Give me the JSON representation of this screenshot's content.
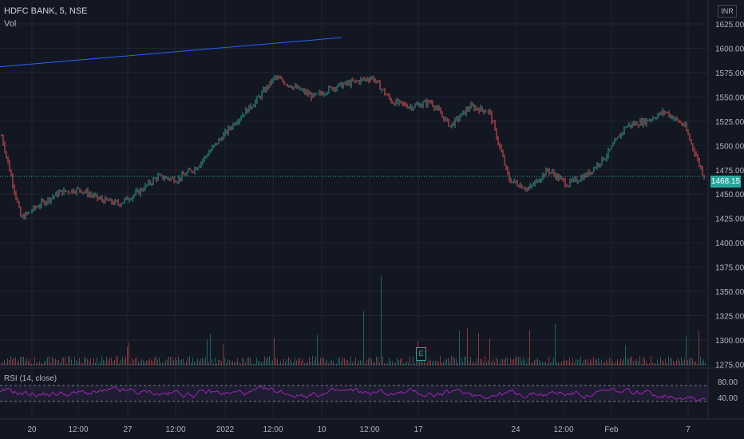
{
  "header": {
    "symbol_line": "HDFC BANK, 5, NSE",
    "volume_label": "Vol",
    "currency": "INR"
  },
  "price_axis": {
    "ticks": [
      "1625.00",
      "1600.00",
      "1575.00",
      "1550.00",
      "1525.00",
      "1500.00",
      "1475.00",
      "1450.00",
      "1425.00",
      "1400.00",
      "1375.00",
      "1350.00",
      "1325.00",
      "1300.00",
      "1275.00"
    ],
    "current_price": "1468.15"
  },
  "rsi": {
    "label": "RSI (14, close)",
    "ticks": [
      "80.00",
      "40.00"
    ]
  },
  "time_axis": {
    "labels": [
      "20",
      "12:00",
      "27",
      "12:00",
      "2022",
      "12:00",
      "10",
      "12:00",
      "17",
      "24",
      "12:00",
      "Feb",
      "7"
    ]
  },
  "earnings_marker": {
    "letter": "E"
  },
  "colors": {
    "bg": "#131722",
    "grid": "#1f2433",
    "up": "#26a69a",
    "down": "#ef5350",
    "rsi": "#9c27b0",
    "trend": "#2962ff"
  },
  "chart_data": [
    {
      "type": "line",
      "title": "HDFC BANK, 5, NSE",
      "x_unit": "date",
      "x": [
        "Dec 17",
        "Dec 20",
        "Dec 21",
        "Dec 22",
        "Dec 23",
        "Dec 24",
        "Dec 27",
        "Dec 28",
        "Dec 29",
        "Dec 30",
        "Dec 31",
        "Jan 03",
        "Jan 04",
        "Jan 05",
        "Jan 06",
        "Jan 07",
        "Jan 10",
        "Jan 11",
        "Jan 12",
        "Jan 13",
        "Jan 14",
        "Jan 17",
        "Jan 18",
        "Jan 19",
        "Jan 20",
        "Jan 21",
        "Jan 24",
        "Jan 25",
        "Jan 27",
        "Jan 28",
        "Jan 31",
        "Feb 01",
        "Feb 02",
        "Feb 03",
        "Feb 04",
        "Feb 07",
        "Feb 08"
      ],
      "y": [
        1510,
        1425,
        1440,
        1452,
        1455,
        1445,
        1440,
        1452,
        1468,
        1465,
        1478,
        1502,
        1525,
        1545,
        1570,
        1560,
        1550,
        1560,
        1565,
        1570,
        1545,
        1540,
        1545,
        1520,
        1540,
        1535,
        1465,
        1455,
        1475,
        1460,
        1470,
        1490,
        1520,
        1525,
        1535,
        1520,
        1468
      ],
      "ylim": [
        1275,
        1625
      ],
      "trendline": {
        "from": [
          0,
          1581
        ],
        "to": [
          "Jan 13",
          1611
        ]
      }
    },
    {
      "type": "bar",
      "title": "Vol",
      "note": "volume bars, spikes near Jan 10 and Jan 12"
    },
    {
      "type": "line",
      "title": "RSI (14, close)",
      "ylim": [
        20,
        90
      ],
      "bands": [
        70,
        30
      ]
    }
  ]
}
